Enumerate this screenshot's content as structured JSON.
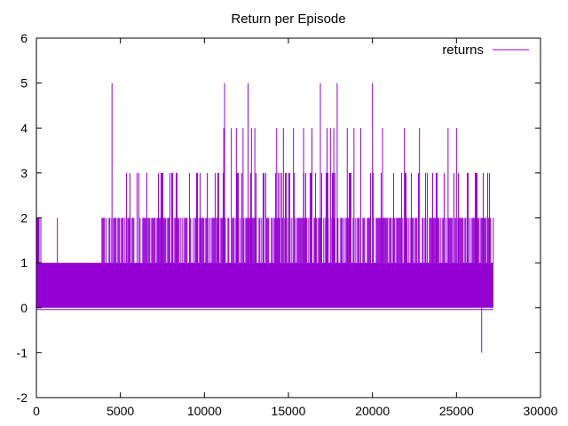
{
  "chart_data": {
    "type": "line",
    "title": "Return per Episode",
    "xlabel": "",
    "ylabel": "",
    "xlim": [
      0,
      30000
    ],
    "ylim": [
      -2,
      6
    ],
    "x_ticks": [
      0,
      5000,
      10000,
      15000,
      20000,
      25000,
      30000
    ],
    "y_ticks": [
      -2,
      -1,
      0,
      1,
      2,
      3,
      4,
      5,
      6
    ],
    "x_tick_labels": [
      "0",
      "5000",
      "10000",
      "15000",
      "20000",
      "25000",
      "30000"
    ],
    "y_tick_labels": [
      "-2",
      "-1",
      "0",
      "1",
      "2",
      "3",
      "4",
      "5",
      "6"
    ],
    "grid": false,
    "legend_position": "top-right",
    "series": [
      {
        "name": "returns",
        "color": "#9400d3",
        "x_range": [
          0,
          27200
        ],
        "base_band": [
          0,
          1
        ],
        "level_2_regions": [
          [
            0,
            300
          ],
          [
            1250,
            1300
          ],
          [
            2300,
            2350
          ],
          [
            3900,
            27200
          ]
        ],
        "level_3_regions": [
          [
            5200,
            27200
          ]
        ],
        "spikes": [
          {
            "x": 4500,
            "y": 5
          },
          {
            "x": 11200,
            "y": 5
          },
          {
            "x": 12600,
            "y": 5
          },
          {
            "x": 16900,
            "y": 5
          },
          {
            "x": 17900,
            "y": 5
          },
          {
            "x": 20000,
            "y": 5
          },
          {
            "x": 11150,
            "y": 4
          },
          {
            "x": 11600,
            "y": 4
          },
          {
            "x": 11900,
            "y": 4
          },
          {
            "x": 12300,
            "y": 4
          },
          {
            "x": 12800,
            "y": 4
          },
          {
            "x": 13000,
            "y": 4
          },
          {
            "x": 14300,
            "y": 4
          },
          {
            "x": 14700,
            "y": 4
          },
          {
            "x": 15300,
            "y": 4
          },
          {
            "x": 15900,
            "y": 4
          },
          {
            "x": 16400,
            "y": 4
          },
          {
            "x": 17300,
            "y": 4
          },
          {
            "x": 17500,
            "y": 4
          },
          {
            "x": 17700,
            "y": 4
          },
          {
            "x": 18500,
            "y": 4
          },
          {
            "x": 18900,
            "y": 4
          },
          {
            "x": 19300,
            "y": 4
          },
          {
            "x": 20600,
            "y": 4
          },
          {
            "x": 21900,
            "y": 4
          },
          {
            "x": 22800,
            "y": 4
          },
          {
            "x": 24500,
            "y": 4
          },
          {
            "x": 25000,
            "y": 4
          },
          {
            "x": 26500,
            "y": -1
          }
        ]
      }
    ]
  }
}
